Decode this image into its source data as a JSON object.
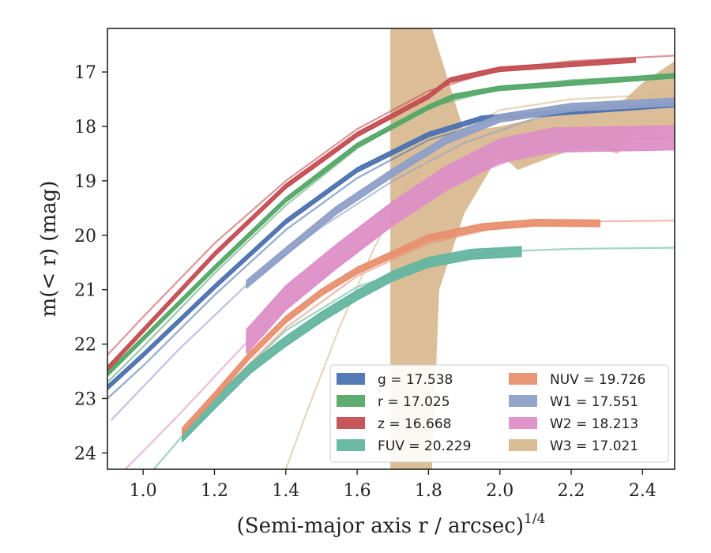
{
  "chart_data": {
    "type": "line",
    "title": "",
    "xlabel": "(Semi-major axis r / arcsec)",
    "xlabel_power": "1/4",
    "ylabel": "m(< r) (mag)",
    "xlim": [
      0.9,
      2.49
    ],
    "ylim": [
      24.3,
      16.2
    ],
    "y_inverted": true,
    "xticks": [
      1.0,
      1.2,
      1.4,
      1.6,
      1.8,
      2.0,
      2.2,
      2.4
    ],
    "xtick_labels": [
      "1.0",
      "1.2",
      "1.4",
      "1.6",
      "1.8",
      "2.0",
      "2.2",
      "2.4"
    ],
    "yticks": [
      17,
      18,
      19,
      20,
      21,
      22,
      23,
      24
    ],
    "ytick_labels": [
      "17",
      "18",
      "19",
      "20",
      "21",
      "22",
      "23",
      "24"
    ],
    "grid": false,
    "legend_position": "lower-right",
    "series": [
      {
        "name": "g = 17.538",
        "band": "g",
        "color": "#4c72b0",
        "model": {
          "x": [
            0.9,
            1.0,
            1.2,
            1.4,
            1.6,
            1.8,
            2.0,
            2.2,
            2.49
          ],
          "y": [
            23.0,
            22.4,
            21.1,
            19.9,
            18.95,
            18.25,
            17.85,
            17.65,
            17.55
          ]
        },
        "data": {
          "x": [
            0.9,
            1.0,
            1.2,
            1.4,
            1.6,
            1.8,
            1.95,
            2.49
          ],
          "y": [
            22.8,
            22.2,
            20.95,
            19.75,
            18.8,
            18.15,
            17.85,
            17.6
          ],
          "halfwidth": 0.04
        }
      },
      {
        "name": "r = 17.025",
        "band": "r",
        "color": "#55a868",
        "model": {
          "x": [
            0.9,
            1.0,
            1.2,
            1.4,
            1.6,
            1.8,
            2.0,
            2.2,
            2.49
          ],
          "y": [
            22.7,
            22.05,
            20.7,
            19.45,
            18.4,
            17.65,
            17.3,
            17.15,
            17.05
          ]
        },
        "data": {
          "x": [
            0.9,
            1.0,
            1.2,
            1.4,
            1.6,
            1.8,
            1.87,
            2.0,
            2.49
          ],
          "y": [
            22.55,
            21.9,
            20.6,
            19.35,
            18.35,
            17.65,
            17.45,
            17.3,
            17.07
          ],
          "halfwidth": 0.04
        }
      },
      {
        "name": "z = 16.668",
        "band": "z",
        "color": "#c44e52",
        "model": {
          "x": [
            0.9,
            1.0,
            1.2,
            1.4,
            1.6,
            1.8,
            2.0,
            2.2,
            2.49
          ],
          "y": [
            22.2,
            21.5,
            20.15,
            19.0,
            18.05,
            17.35,
            16.95,
            16.8,
            16.7
          ]
        },
        "data": {
          "x": [
            0.9,
            1.0,
            1.2,
            1.4,
            1.6,
            1.8,
            1.86,
            2.0,
            2.38
          ],
          "y": [
            22.45,
            21.75,
            20.35,
            19.1,
            18.15,
            17.45,
            17.15,
            16.95,
            16.78
          ],
          "halfwidth": 0.04
        }
      },
      {
        "name": "FUV = 20.229",
        "band": "FUV",
        "color": "#64b5a0",
        "model": {
          "x": [
            1.03,
            1.2,
            1.4,
            1.6,
            1.8,
            2.0,
            2.2,
            2.49
          ],
          "y": [
            24.3,
            23.0,
            21.75,
            20.95,
            20.5,
            20.3,
            20.25,
            20.23
          ]
        },
        "data": {
          "x": [
            1.11,
            1.2,
            1.3,
            1.4,
            1.5,
            1.6,
            1.7,
            1.8,
            1.92,
            2.06
          ],
          "y": [
            23.7,
            23.1,
            22.45,
            21.95,
            21.5,
            21.1,
            20.75,
            20.5,
            20.35,
            20.3
          ],
          "halfwidth": 0.09
        }
      },
      {
        "name": "NUV = 19.726",
        "band": "NUV",
        "color": "#e8906f",
        "model": {
          "x": [
            1.11,
            1.2,
            1.4,
            1.6,
            1.8,
            2.0,
            2.2,
            2.49
          ],
          "y": [
            23.7,
            23.0,
            21.7,
            20.75,
            20.15,
            19.85,
            19.75,
            19.73
          ]
        },
        "data": {
          "x": [
            1.11,
            1.2,
            1.3,
            1.4,
            1.5,
            1.6,
            1.7,
            1.8,
            1.95,
            2.1,
            2.28
          ],
          "y": [
            23.6,
            22.95,
            22.2,
            21.55,
            21.05,
            20.65,
            20.35,
            20.05,
            19.85,
            19.77,
            19.78
          ],
          "halfwidth": 0.06
        }
      },
      {
        "name": "W1 = 17.551",
        "band": "W1",
        "color": "#8e9fc8",
        "model": {
          "x": [
            0.91,
            1.1,
            1.3,
            1.5,
            1.7,
            1.9,
            2.1,
            2.3,
            2.49
          ],
          "y": [
            23.4,
            22.1,
            20.85,
            19.85,
            19.0,
            18.3,
            17.85,
            17.65,
            17.55
          ]
        },
        "data": {
          "x": [
            1.29,
            1.4,
            1.54,
            1.7,
            1.85,
            2.0,
            2.2,
            2.49
          ],
          "y": [
            20.9,
            20.3,
            19.55,
            18.85,
            18.25,
            17.85,
            17.65,
            17.55
          ],
          "halfwidth": 0.07
        }
      },
      {
        "name": "W2 = 18.213",
        "band": "W2",
        "color": "#dd8fc6",
        "model": {
          "x": [
            0.95,
            1.1,
            1.3,
            1.5,
            1.7,
            1.9,
            2.1,
            2.3,
            2.49
          ],
          "y": [
            24.3,
            23.3,
            21.9,
            20.75,
            19.75,
            18.95,
            18.45,
            18.25,
            18.21
          ]
        },
        "data": {
          "x": [
            1.29,
            1.4,
            1.54,
            1.7,
            1.85,
            2.0,
            2.15,
            2.49
          ],
          "y": [
            21.95,
            21.15,
            20.4,
            19.6,
            18.95,
            18.45,
            18.25,
            18.21
          ],
          "halfwidth": 0.22
        }
      },
      {
        "name": "W3 = 17.021",
        "band": "W3",
        "color": "#d8b98e",
        "model": {
          "x": [
            1.4,
            1.45,
            1.55,
            1.65,
            1.75,
            1.85,
            2.0,
            2.2,
            2.49
          ],
          "y": [
            24.3,
            23.4,
            21.7,
            20.2,
            19.0,
            18.2,
            17.7,
            17.5,
            17.4
          ]
        },
        "band_upper": {
          "x": [
            1.693,
            1.71,
            1.76,
            1.81,
            1.9,
            2.0,
            2.1,
            2.2,
            2.3,
            2.35,
            2.4,
            2.49
          ],
          "y": [
            16.2,
            16.2,
            16.2,
            16.2,
            18.1,
            18.0,
            17.85,
            17.7,
            17.6,
            17.5,
            17.2,
            16.8
          ]
        },
        "band_lower": {
          "x": [
            1.693,
            1.71,
            1.76,
            1.81,
            1.83,
            1.9,
            2.0,
            2.05,
            2.15,
            2.25,
            2.33,
            2.38,
            2.43,
            2.49
          ],
          "y": [
            24.3,
            24.3,
            24.3,
            24.3,
            21.0,
            19.6,
            18.5,
            18.8,
            18.55,
            18.35,
            18.5,
            18.1,
            18.05,
            18.0
          ]
        }
      }
    ]
  }
}
